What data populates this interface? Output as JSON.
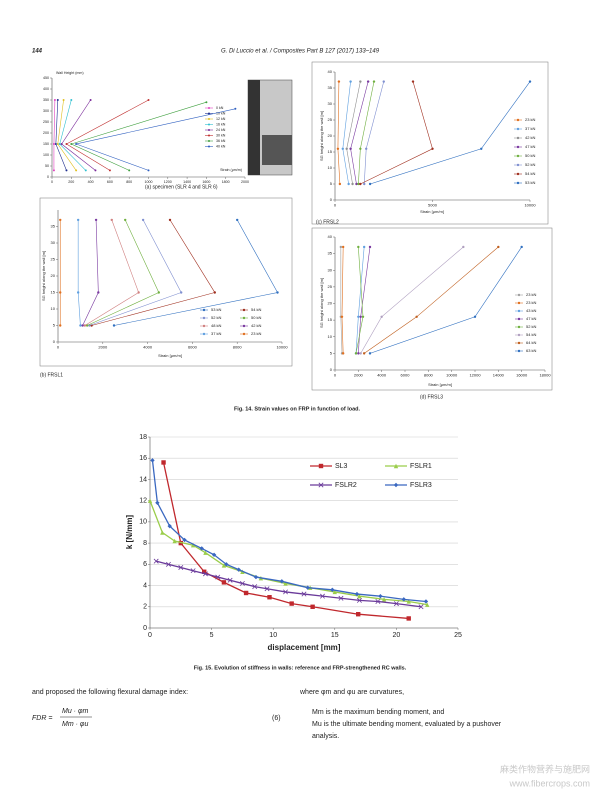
{
  "header": {
    "page": "144",
    "journal": "G. Di Luccio et al. / Composites Part B 127 (2017) 133–149"
  },
  "chart_data": [
    {
      "type": "line",
      "caption": "(a) specimen (SLR 4 and SLR 6)",
      "xlabel": "Strain (μm/m)",
      "ylabel": "Wall Height (mm)",
      "xlim": [
        0,
        2000
      ],
      "ylim": [
        0,
        450
      ],
      "xticks": [
        0,
        200,
        400,
        600,
        800,
        1000,
        1200,
        1400,
        1600,
        1800,
        2000
      ],
      "yticks": [
        0,
        50,
        100,
        150,
        200,
        250,
        300,
        350,
        400,
        450
      ],
      "series": [
        {
          "name": "0 kN",
          "color": "#e040c0",
          "x": [
            20,
            20,
            30
          ],
          "values": [
            30,
            150,
            350
          ]
        },
        {
          "name": "10 kN",
          "color": "#1f2f8f",
          "x": [
            150,
            40,
            60
          ],
          "values": [
            30,
            150,
            350
          ]
        },
        {
          "name": "12 kN",
          "color": "#e0c020",
          "x": [
            250,
            60,
            120
          ],
          "values": [
            30,
            150,
            350
          ]
        },
        {
          "name": "16 kN",
          "color": "#30c0d0",
          "x": [
            350,
            80,
            200
          ],
          "values": [
            30,
            150,
            350
          ]
        },
        {
          "name": "24 kN",
          "color": "#7a2a9a",
          "x": [
            450,
            100,
            400
          ],
          "values": [
            30,
            150,
            350
          ]
        },
        {
          "name": "30 kN",
          "color": "#c03030",
          "x": [
            600,
            150,
            1000
          ],
          "values": [
            30,
            150,
            350
          ]
        },
        {
          "name": "36 kN",
          "color": "#40a040",
          "x": [
            800,
            200,
            1600
          ],
          "values": [
            30,
            150,
            340
          ]
        },
        {
          "name": "40 kN",
          "color": "#3060c0",
          "x": [
            1000,
            250,
            1900
          ],
          "values": [
            30,
            150,
            310
          ]
        }
      ]
    },
    {
      "type": "line",
      "caption": "(c) FRSL2",
      "xlabel": "Strain [μm/m]",
      "ylabel": "SG height along the wall [m]",
      "xlim": [
        0,
        10000
      ],
      "ylim": [
        0,
        40
      ],
      "xticks": [
        0,
        5000,
        10000
      ],
      "yticks": [
        0,
        5,
        10,
        15,
        20,
        25,
        30,
        35,
        40
      ],
      "series": [
        {
          "name": "23 kN",
          "color": "#e07020",
          "x": [
            250,
            150,
            200
          ],
          "values": [
            5,
            16,
            37
          ]
        },
        {
          "name": "37 kN",
          "color": "#60a0e0",
          "x": [
            700,
            400,
            800
          ],
          "values": [
            5,
            16,
            37
          ]
        },
        {
          "name": "42 kN",
          "color": "#909090",
          "x": [
            900,
            600,
            1300
          ],
          "values": [
            5,
            16,
            37
          ]
        },
        {
          "name": "47 kN",
          "color": "#7a3aa0",
          "x": [
            1100,
            800,
            1700
          ],
          "values": [
            5,
            16,
            37
          ]
        },
        {
          "name": "50 kN",
          "color": "#70b040",
          "x": [
            1200,
            1300,
            2000
          ],
          "values": [
            5,
            16,
            37
          ]
        },
        {
          "name": "52 kN",
          "color": "#8090d0",
          "x": [
            1500,
            1600,
            2500
          ],
          "values": [
            5,
            16,
            37
          ]
        },
        {
          "name": "54 kN",
          "color": "#a03020",
          "x": [
            1300,
            5000,
            4000
          ],
          "values": [
            5,
            16,
            37
          ]
        },
        {
          "name": "53 kN",
          "color": "#3070c0",
          "x": [
            1800,
            7500,
            10000
          ],
          "values": [
            5,
            16,
            37
          ]
        }
      ]
    },
    {
      "type": "line",
      "caption": "(b) FRSL1",
      "xlabel": "Strain [μm/m]",
      "ylabel": "SG height along the wall [m]",
      "xlim": [
        0,
        10000
      ],
      "ylim": [
        0,
        40
      ],
      "xticks": [
        0,
        2000,
        4000,
        6000,
        8000,
        10000
      ],
      "yticks": [
        0,
        5,
        10,
        15,
        20,
        25,
        30,
        35
      ],
      "series": [
        {
          "name": "53 kN",
          "color": "#3070c0",
          "x": [
            2500,
            9800,
            8000
          ],
          "values": [
            5,
            15,
            37
          ]
        },
        {
          "name": "54 kN",
          "color": "#a03020",
          "x": [
            1500,
            7000,
            5000
          ],
          "values": [
            5,
            15,
            37
          ]
        },
        {
          "name": "52 kN",
          "color": "#8090d0",
          "x": [
            1400,
            5500,
            3800
          ],
          "values": [
            5,
            15,
            37
          ]
        },
        {
          "name": "50 kN",
          "color": "#70b040",
          "x": [
            1300,
            4500,
            3000
          ],
          "values": [
            5,
            15,
            37
          ]
        },
        {
          "name": "48 kN",
          "color": "#d08080",
          "x": [
            1200,
            3600,
            2400
          ],
          "values": [
            5,
            15,
            37
          ]
        },
        {
          "name": "42 kN",
          "color": "#7a3aa0",
          "x": [
            1100,
            1800,
            1700
          ],
          "values": [
            5,
            15,
            37
          ]
        },
        {
          "name": "37 kN",
          "color": "#60a0e0",
          "x": [
            1000,
            900,
            900
          ],
          "values": [
            5,
            15,
            37
          ]
        },
        {
          "name": "23 kN",
          "color": "#e07020",
          "x": [
            100,
            100,
            100
          ],
          "values": [
            5,
            15,
            37
          ]
        }
      ]
    },
    {
      "type": "line",
      "caption": "(d) FRSL3",
      "xlabel": "Strain [μm/m]",
      "ylabel": "SG height along the wall [m]",
      "xlim": [
        0,
        18000
      ],
      "ylim": [
        0,
        40
      ],
      "xticks": [
        0,
        2000,
        4000,
        6000,
        8000,
        10000,
        12000,
        14000,
        16000,
        18000
      ],
      "yticks": [
        0,
        5,
        10,
        15,
        20,
        25,
        30,
        35,
        40
      ],
      "series": [
        {
          "name": "23 kN",
          "color": "#a0a0a0",
          "x": [
            600,
            500,
            500
          ],
          "values": [
            5,
            16,
            37
          ]
        },
        {
          "name": "23 kN",
          "color": "#e07020",
          "x": [
            700,
            600,
            700
          ],
          "values": [
            5,
            16,
            37
          ]
        },
        {
          "name": "43 kN",
          "color": "#60a0e0",
          "x": [
            1800,
            2000,
            2500
          ],
          "values": [
            5,
            16,
            37
          ]
        },
        {
          "name": "47 kN",
          "color": "#7a3aa0",
          "x": [
            2000,
            2200,
            3000
          ],
          "values": [
            5,
            16,
            37
          ]
        },
        {
          "name": "52 kN",
          "color": "#70b040",
          "x": [
            1800,
            2400,
            2000
          ],
          "values": [
            5,
            16,
            37
          ]
        },
        {
          "name": "54 kN",
          "color": "#b0a0c0",
          "x": [
            2200,
            4000,
            11000
          ],
          "values": [
            5,
            16,
            37
          ]
        },
        {
          "name": "64 kN",
          "color": "#c06020",
          "x": [
            2500,
            7000,
            14000
          ],
          "values": [
            5,
            16,
            37
          ]
        },
        {
          "name": "63 kN",
          "color": "#3070c0",
          "x": [
            3000,
            12000,
            16000
          ],
          "values": [
            5,
            16,
            37
          ]
        }
      ]
    },
    {
      "type": "line",
      "xlabel": "displacement [mm]",
      "ylabel": "k [N/mm]",
      "grid": true,
      "xlim": [
        0,
        25
      ],
      "ylim": [
        0,
        18
      ],
      "xticks": [
        0,
        5,
        10,
        15,
        20,
        25
      ],
      "yticks": [
        0,
        2,
        4,
        6,
        8,
        10,
        12,
        14,
        16,
        18
      ],
      "series": [
        {
          "name": "SL3",
          "color": "#c0282d",
          "marker": "square",
          "x": [
            1.1,
            2.5,
            4.4,
            6,
            7.8,
            9.7,
            11.5,
            13.2,
            16.9,
            21
          ],
          "values": [
            15.6,
            8.0,
            5.3,
            4.3,
            3.3,
            2.9,
            2.3,
            2.0,
            1.3,
            0.9
          ]
        },
        {
          "name": "FSLR1",
          "color": "#9acd4a",
          "marker": "triangle",
          "x": [
            0,
            1,
            2,
            3.5,
            4.5,
            6,
            7.5,
            9,
            11,
            13,
            15,
            17,
            19,
            21,
            22.5
          ],
          "values": [
            12,
            9,
            8.2,
            7.8,
            7.1,
            5.9,
            5.3,
            4.7,
            4.2,
            3.8,
            3.4,
            3.0,
            2.7,
            2.5,
            2.2
          ]
        },
        {
          "name": "FSLR2",
          "color": "#6a3a9a",
          "marker": "x",
          "x": [
            0.5,
            1.5,
            2.5,
            3.5,
            4.5,
            5.5,
            6.5,
            7.5,
            8.5,
            9.5,
            11,
            12.5,
            14,
            15.5,
            17,
            18.5,
            20,
            22
          ],
          "values": [
            6.3,
            6.0,
            5.7,
            5.4,
            5.1,
            4.8,
            4.5,
            4.2,
            3.9,
            3.7,
            3.4,
            3.2,
            3.0,
            2.8,
            2.6,
            2.5,
            2.3,
            2.0
          ]
        },
        {
          "name": "FSLR3",
          "color": "#3a68c0",
          "marker": "diamond",
          "x": [
            0.2,
            0.6,
            1.6,
            2.8,
            4.2,
            5.2,
            6.2,
            7.2,
            8.6,
            10.7,
            12.8,
            14.8,
            16.8,
            18.7,
            20.6,
            22.4
          ],
          "values": [
            15.8,
            11.8,
            9.6,
            8.3,
            7.5,
            6.9,
            6.0,
            5.5,
            4.8,
            4.4,
            3.8,
            3.6,
            3.2,
            3.0,
            2.7,
            2.5
          ]
        }
      ]
    }
  ],
  "fig14_caption": "Fig. 14. Strain values on FRP in function of load.",
  "fig15_caption": "Fig. 15. Evolution of stiffness in walls: reference and FRP-strengthened RC walls.",
  "text": {
    "left": "and proposed the following flexural damage index:",
    "equation": {
      "lhs": "FDR =",
      "numerator": "Mu · φm",
      "denominator": "Mm · φu",
      "number": "(6)"
    },
    "right": [
      "where φm and φu are curvatures,",
      "Mm is the maximum bending moment, and",
      "Mu is the ultimate bending moment, evaluated by a pushover",
      "analysis."
    ]
  },
  "watermark": [
    "麻类作物营养与施肥网",
    "www.fibercrops.com"
  ]
}
